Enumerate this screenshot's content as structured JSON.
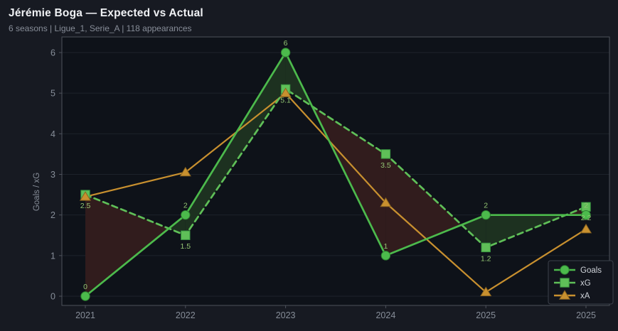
{
  "header": {
    "title": "Jérémie Boga — Expected vs Actual",
    "subtitle": "6 seasons | Ligue_1, Serie_A | 118 appearances"
  },
  "chart_data": {
    "type": "line",
    "title": "Jérémie Boga — Expected vs Actual",
    "subtitle": "6 seasons | Ligue_1, Serie_A | 118 appearances",
    "categories": [
      "2021",
      "2022",
      "2023",
      "2024",
      "2025",
      "2025"
    ],
    "xlabel": "",
    "ylabel": "Goals / xG",
    "yticks": [
      0,
      1,
      2,
      3,
      4,
      5,
      6
    ],
    "ylim": [
      -0.25,
      6.35
    ],
    "grid": true,
    "legend_position": "bottom-right",
    "series": [
      {
        "name": "Goals",
        "line_style": "solid",
        "marker": "circle",
        "color": "#4cba4c",
        "marker_edge": "#2c8030",
        "values": [
          0,
          2,
          6,
          1,
          2,
          2
        ],
        "point_labels": [
          "0",
          "2",
          "6",
          "1",
          "2",
          "2"
        ]
      },
      {
        "name": "xG",
        "line_style": "dashed",
        "marker": "square",
        "color": "#5fbf58",
        "marker_edge": "#379540",
        "values": [
          2.5,
          1.5,
          5.1,
          3.5,
          1.2,
          2.2
        ],
        "point_labels": [
          "2.5",
          "1.5",
          "5.1",
          "3.5",
          "1.2",
          "2.2"
        ]
      },
      {
        "name": "xA",
        "line_style": "solid",
        "marker": "triangle",
        "color": "#c8902f",
        "marker_edge": "#8a6420",
        "values": [
          2.45,
          3.05,
          5.0,
          2.3,
          0.1,
          1.65
        ],
        "point_labels": []
      }
    ],
    "fill_between": {
      "series_a": "Goals",
      "series_b": "xG",
      "a_above_color": "#1d3120",
      "a_below_color": "#311c1d"
    },
    "colors": {
      "background": "#171a22",
      "plot_background": "#0e1219",
      "grid": "#1d222b",
      "axis": "#4d525b",
      "tick_label": "#878e99",
      "point_label": "#93c573",
      "legend_text": "#cfd3d9",
      "legend_border": "#3c414b",
      "legend_background": "#12151d",
      "title": "#f0f2f5",
      "subtitle": "#878d98"
    }
  }
}
